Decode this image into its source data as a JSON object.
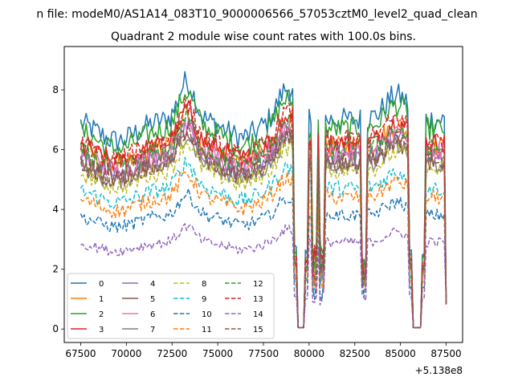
{
  "chart_data": {
    "type": "line",
    "suptitle": "n file: modeM0/AS1A14_083T10_9000006566_57053cztM0_level2_quad_clean",
    "title": "Quadrant 2 module wise count rates with 100.0s bins.",
    "xlabel": "",
    "ylabel": "",
    "offset_label": "+5.138e8",
    "xlim": [
      66600,
      88400
    ],
    "ylim": [
      -0.45,
      9.45
    ],
    "x_start": 67500,
    "x_step": 100,
    "x_end": 87500,
    "xticks": [
      67500,
      70000,
      72500,
      75000,
      77500,
      80000,
      82500,
      85000,
      87500
    ],
    "xtick_labels": [
      "67500",
      "70000",
      "72500",
      "75000",
      "77500",
      "80000",
      "82500",
      "85000",
      "87500"
    ],
    "yticks": [
      0,
      2,
      4,
      6,
      8
    ],
    "ytick_labels": [
      "0",
      "2",
      "4",
      "6",
      "8"
    ],
    "gaps": [
      {
        "from": 79300,
        "to": 79800
      },
      {
        "from": 85600,
        "to": 86200
      }
    ],
    "dips": [
      80300,
      80700,
      83000
    ],
    "series": [
      {
        "name": "0",
        "style": "solid",
        "color": "#1f77b4",
        "base": 7.0
      },
      {
        "name": "1",
        "style": "solid",
        "color": "#ff7f0e",
        "base": 6.1
      },
      {
        "name": "2",
        "style": "solid",
        "color": "#2ca02c",
        "base": 6.7
      },
      {
        "name": "3",
        "style": "solid",
        "color": "#d62728",
        "base": 6.2
      },
      {
        "name": "4",
        "style": "solid",
        "color": "#9467bd",
        "base": 5.8
      },
      {
        "name": "5",
        "style": "solid",
        "color": "#8c564b",
        "base": 5.6
      },
      {
        "name": "6",
        "style": "solid",
        "color": "#e377c2",
        "base": 5.9
      },
      {
        "name": "7",
        "style": "solid",
        "color": "#7f7f7f",
        "base": 5.5
      },
      {
        "name": "8",
        "style": "dashed",
        "color": "#bcbd22",
        "base": 5.3
      },
      {
        "name": "9",
        "style": "dashed",
        "color": "#17becf",
        "base": 4.7
      },
      {
        "name": "10",
        "style": "dashed",
        "color": "#1f77b4",
        "base": 3.8
      },
      {
        "name": "11",
        "style": "dashed",
        "color": "#ff7f0e",
        "base": 4.4
      },
      {
        "name": "12",
        "style": "dashed",
        "color": "#2ca02c",
        "base": 6.0
      },
      {
        "name": "13",
        "style": "dashed",
        "color": "#d62728",
        "base": 6.3
      },
      {
        "name": "14",
        "style": "dashed",
        "color": "#9467bd",
        "base": 2.9
      },
      {
        "name": "15",
        "style": "dashed",
        "color": "#8c564b",
        "base": 5.6
      }
    ]
  }
}
